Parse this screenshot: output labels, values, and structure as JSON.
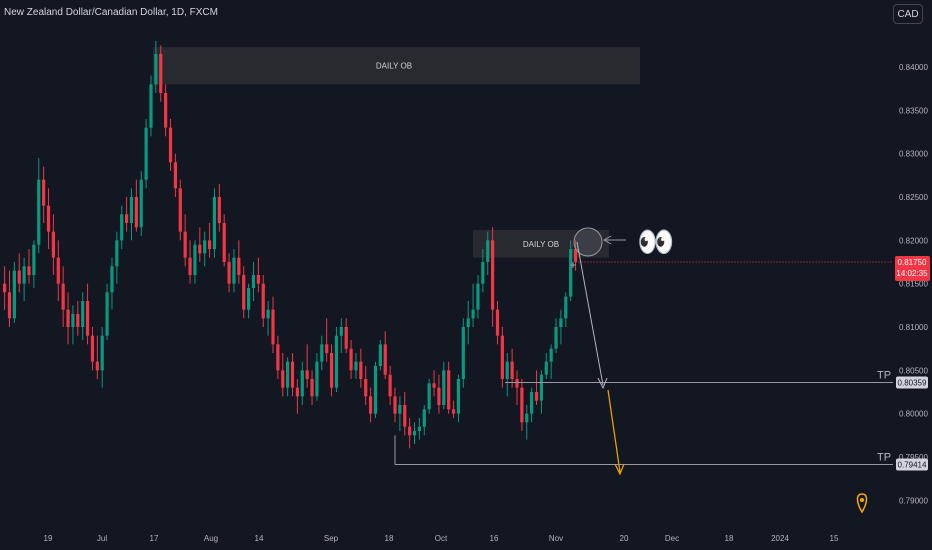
{
  "header": {
    "title": "New Zealand Dollar/Canadian Dollar, 1D, FXCM",
    "currency": "CAD"
  },
  "chart_data": {
    "type": "candlestick",
    "y_ticks": [
      "0.84000",
      "0.83500",
      "0.83000",
      "0.82500",
      "0.82000",
      "0.81500",
      "0.81000",
      "0.80500",
      "0.80000",
      "0.79500",
      "0.79000"
    ],
    "y_tick_values": [
      0.84,
      0.835,
      0.83,
      0.825,
      0.82,
      0.815,
      0.81,
      0.805,
      0.8,
      0.795,
      0.79
    ],
    "ylim": [
      0.7875,
      0.8445
    ],
    "x_ticks": [
      "19",
      "Jul",
      "17",
      "Aug",
      "14",
      "Sep",
      "18",
      "Oct",
      "16",
      "Nov",
      "20",
      "Dec",
      "18",
      "2024",
      "15"
    ],
    "price_label": {
      "value": "0.81750",
      "countdown": "14:02:35"
    },
    "tp_levels": [
      {
        "label": "TP",
        "value": "0.80359"
      },
      {
        "label": "TP",
        "value": "0.79414"
      }
    ],
    "zones": [
      {
        "label": "DAILY OB",
        "top": 0.8423,
        "bottom": 0.838
      },
      {
        "label": "DAILY OB",
        "top": 0.8212,
        "bottom": 0.818
      }
    ],
    "emoji": "👀",
    "candles": [
      [
        0.815,
        0.817,
        0.812,
        0.814
      ],
      [
        0.814,
        0.8165,
        0.81,
        0.811
      ],
      [
        0.811,
        0.8175,
        0.8105,
        0.8165
      ],
      [
        0.8165,
        0.8185,
        0.814,
        0.815
      ],
      [
        0.815,
        0.818,
        0.813,
        0.817
      ],
      [
        0.817,
        0.819,
        0.815,
        0.816
      ],
      [
        0.816,
        0.82,
        0.8145,
        0.8195
      ],
      [
        0.8195,
        0.8295,
        0.8185,
        0.827
      ],
      [
        0.827,
        0.8285,
        0.822,
        0.824
      ],
      [
        0.824,
        0.826,
        0.819,
        0.821
      ],
      [
        0.821,
        0.823,
        0.816,
        0.818
      ],
      [
        0.818,
        0.82,
        0.813,
        0.815
      ],
      [
        0.815,
        0.817,
        0.81,
        0.812
      ],
      [
        0.812,
        0.814,
        0.808,
        0.81
      ],
      [
        0.81,
        0.8125,
        0.808,
        0.8115
      ],
      [
        0.8115,
        0.813,
        0.809,
        0.81
      ],
      [
        0.81,
        0.814,
        0.8085,
        0.813
      ],
      [
        0.813,
        0.815,
        0.808,
        0.809
      ],
      [
        0.809,
        0.81,
        0.805,
        0.806
      ],
      [
        0.806,
        0.809,
        0.804,
        0.805
      ],
      [
        0.805,
        0.81,
        0.803,
        0.809
      ],
      [
        0.809,
        0.815,
        0.8085,
        0.814
      ],
      [
        0.814,
        0.818,
        0.812,
        0.817
      ],
      [
        0.817,
        0.821,
        0.815,
        0.82
      ],
      [
        0.82,
        0.824,
        0.819,
        0.823
      ],
      [
        0.823,
        0.825,
        0.821,
        0.822
      ],
      [
        0.822,
        0.826,
        0.82,
        0.825
      ],
      [
        0.825,
        0.827,
        0.821,
        0.8215
      ],
      [
        0.8215,
        0.828,
        0.8205,
        0.827
      ],
      [
        0.827,
        0.834,
        0.826,
        0.833
      ],
      [
        0.833,
        0.839,
        0.832,
        0.838
      ],
      [
        0.838,
        0.843,
        0.837,
        0.8415
      ],
      [
        0.8415,
        0.8425,
        0.836,
        0.837
      ],
      [
        0.837,
        0.838,
        0.832,
        0.833
      ],
      [
        0.833,
        0.834,
        0.828,
        0.829
      ],
      [
        0.829,
        0.83,
        0.825,
        0.826
      ],
      [
        0.826,
        0.827,
        0.82,
        0.821
      ],
      [
        0.821,
        0.823,
        0.817,
        0.818
      ],
      [
        0.818,
        0.82,
        0.815,
        0.816
      ],
      [
        0.816,
        0.82,
        0.815,
        0.8195
      ],
      [
        0.8195,
        0.8215,
        0.8175,
        0.8185
      ],
      [
        0.8185,
        0.821,
        0.817,
        0.82
      ],
      [
        0.82,
        0.822,
        0.818,
        0.819
      ],
      [
        0.819,
        0.826,
        0.818,
        0.825
      ],
      [
        0.825,
        0.8265,
        0.821,
        0.822
      ],
      [
        0.822,
        0.823,
        0.817,
        0.8175
      ],
      [
        0.8175,
        0.8185,
        0.814,
        0.815
      ],
      [
        0.815,
        0.819,
        0.814,
        0.818
      ],
      [
        0.818,
        0.82,
        0.815,
        0.816
      ],
      [
        0.816,
        0.817,
        0.811,
        0.812
      ],
      [
        0.812,
        0.815,
        0.811,
        0.8145
      ],
      [
        0.8145,
        0.8175,
        0.813,
        0.816
      ],
      [
        0.816,
        0.818,
        0.814,
        0.815
      ],
      [
        0.815,
        0.816,
        0.81,
        0.811
      ],
      [
        0.811,
        0.813,
        0.809,
        0.812
      ],
      [
        0.812,
        0.8135,
        0.807,
        0.808
      ],
      [
        0.808,
        0.809,
        0.804,
        0.805
      ],
      [
        0.805,
        0.807,
        0.802,
        0.803
      ],
      [
        0.803,
        0.8065,
        0.802,
        0.806
      ],
      [
        0.806,
        0.807,
        0.802,
        0.803
      ],
      [
        0.803,
        0.804,
        0.8,
        0.802
      ],
      [
        0.802,
        0.806,
        0.801,
        0.805
      ],
      [
        0.805,
        0.808,
        0.803,
        0.804
      ],
      [
        0.804,
        0.805,
        0.801,
        0.802
      ],
      [
        0.802,
        0.807,
        0.8015,
        0.806
      ],
      [
        0.806,
        0.809,
        0.805,
        0.808
      ],
      [
        0.808,
        0.811,
        0.806,
        0.807
      ],
      [
        0.807,
        0.808,
        0.802,
        0.803
      ],
      [
        0.803,
        0.81,
        0.8025,
        0.809
      ],
      [
        0.809,
        0.811,
        0.807,
        0.81
      ],
      [
        0.81,
        0.811,
        0.807,
        0.8075
      ],
      [
        0.8075,
        0.8085,
        0.804,
        0.805
      ],
      [
        0.805,
        0.807,
        0.804,
        0.806
      ],
      [
        0.806,
        0.8075,
        0.803,
        0.804
      ],
      [
        0.804,
        0.8055,
        0.801,
        0.802
      ],
      [
        0.802,
        0.803,
        0.799,
        0.8
      ],
      [
        0.8,
        0.806,
        0.7995,
        0.8055
      ],
      [
        0.8055,
        0.8085,
        0.805,
        0.808
      ],
      [
        0.808,
        0.8095,
        0.804,
        0.8045
      ],
      [
        0.8045,
        0.8055,
        0.801,
        0.802
      ],
      [
        0.802,
        0.803,
        0.799,
        0.8
      ],
      [
        0.8,
        0.802,
        0.798,
        0.801
      ],
      [
        0.801,
        0.8025,
        0.7975,
        0.7985
      ],
      [
        0.7985,
        0.7995,
        0.796,
        0.7975
      ],
      [
        0.7975,
        0.799,
        0.7965,
        0.798
      ],
      [
        0.798,
        0.7995,
        0.797,
        0.7985
      ],
      [
        0.7985,
        0.801,
        0.7975,
        0.8005
      ],
      [
        0.8005,
        0.804,
        0.8,
        0.8035
      ],
      [
        0.8035,
        0.805,
        0.802,
        0.803
      ],
      [
        0.803,
        0.8045,
        0.8,
        0.801
      ],
      [
        0.801,
        0.806,
        0.8005,
        0.805
      ],
      [
        0.805,
        0.806,
        0.8,
        0.8005
      ],
      [
        0.8005,
        0.8015,
        0.7995,
        0.8
      ],
      [
        0.8,
        0.8045,
        0.799,
        0.804
      ],
      [
        0.804,
        0.811,
        0.803,
        0.81
      ],
      [
        0.81,
        0.813,
        0.808,
        0.811
      ],
      [
        0.811,
        0.815,
        0.81,
        0.812
      ],
      [
        0.812,
        0.816,
        0.811,
        0.815
      ],
      [
        0.815,
        0.819,
        0.814,
        0.8175
      ],
      [
        0.8175,
        0.821,
        0.816,
        0.82
      ],
      [
        0.82,
        0.8215,
        0.81,
        0.812
      ],
      [
        0.812,
        0.813,
        0.808,
        0.809
      ],
      [
        0.809,
        0.81,
        0.803,
        0.804
      ],
      [
        0.804,
        0.807,
        0.802,
        0.806
      ],
      [
        0.806,
        0.8075,
        0.803,
        0.804
      ],
      [
        0.804,
        0.805,
        0.801,
        0.803
      ],
      [
        0.803,
        0.804,
        0.798,
        0.799
      ],
      [
        0.799,
        0.801,
        0.797,
        0.8
      ],
      [
        0.8,
        0.803,
        0.799,
        0.8025
      ],
      [
        0.8025,
        0.805,
        0.801,
        0.8015
      ],
      [
        0.8015,
        0.805,
        0.8,
        0.8045
      ],
      [
        0.8045,
        0.807,
        0.804,
        0.806
      ],
      [
        0.806,
        0.808,
        0.804,
        0.8075
      ],
      [
        0.8075,
        0.811,
        0.807,
        0.81
      ],
      [
        0.81,
        0.812,
        0.808,
        0.811
      ],
      [
        0.811,
        0.814,
        0.81,
        0.8135
      ],
      [
        0.8135,
        0.82,
        0.813,
        0.819
      ],
      [
        0.819,
        0.82,
        0.8165,
        0.8175
      ]
    ]
  }
}
